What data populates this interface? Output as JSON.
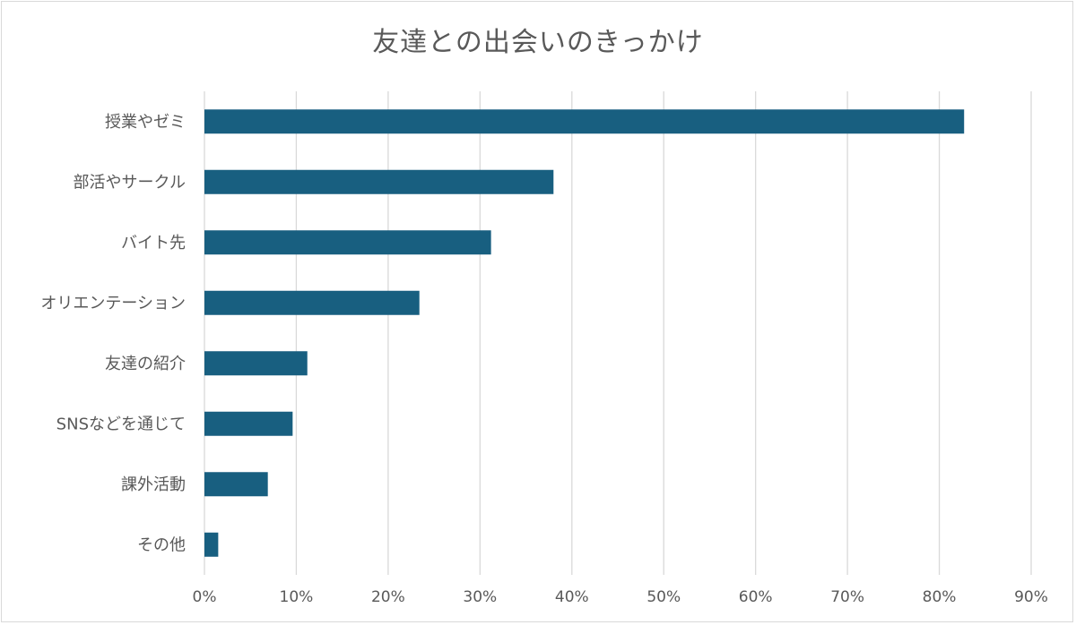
{
  "chart_data": {
    "type": "bar",
    "orientation": "horizontal",
    "title": "友達との出会いのきっかけ",
    "xlabel": "",
    "ylabel": "",
    "categories": [
      "授業やゼミ",
      "部活やサークル",
      "バイト先",
      "オリエンテーション",
      "友達の紹介",
      "SNSなどを通じて",
      "課外活動",
      "その他"
    ],
    "values": [
      82.7,
      38.0,
      31.2,
      23.4,
      11.2,
      9.6,
      6.9,
      1.5
    ],
    "xlim": [
      0,
      90
    ],
    "x_ticks": [
      "0%",
      "10%",
      "20%",
      "30%",
      "40%",
      "50%",
      "60%",
      "70%",
      "80%",
      "90%"
    ],
    "grid": "vertical",
    "bar_color": "#185f80",
    "grid_color": "#d9d9d9"
  }
}
